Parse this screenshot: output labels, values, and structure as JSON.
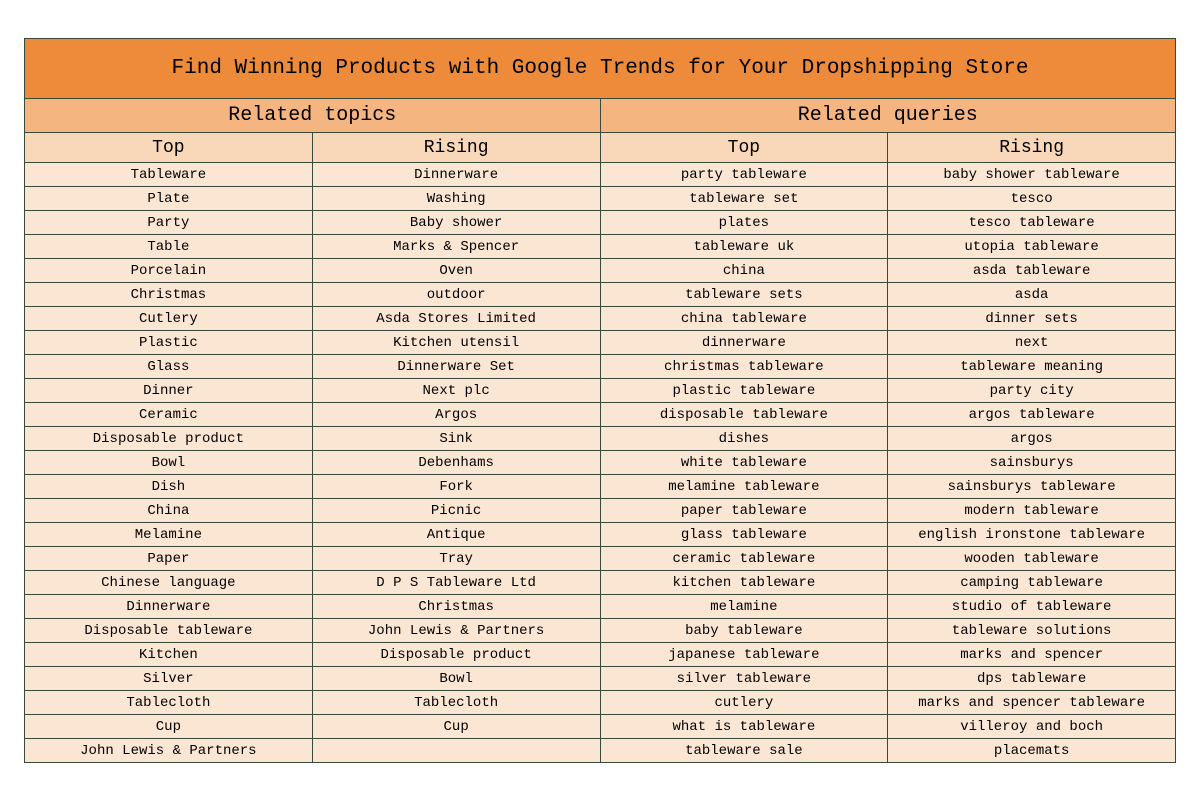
{
  "title": "Find Winning Products with Google Trends for Your Dropshipping Store",
  "sections": {
    "left": "Related topics",
    "right": "Related queries"
  },
  "subheaders": {
    "c0": "Top",
    "c1": "Rising",
    "c2": "Top",
    "c3": "Rising"
  },
  "rows": [
    {
      "c0": "Tableware",
      "c1": "Dinnerware",
      "c2": "party tableware",
      "c3": "baby shower tableware"
    },
    {
      "c0": "Plate",
      "c1": "Washing",
      "c2": "tableware set",
      "c3": "tesco"
    },
    {
      "c0": "Party",
      "c1": "Baby shower",
      "c2": "plates",
      "c3": "tesco tableware"
    },
    {
      "c0": "Table",
      "c1": "Marks & Spencer",
      "c2": "tableware uk",
      "c3": "utopia tableware"
    },
    {
      "c0": "Porcelain",
      "c1": "Oven",
      "c2": "china",
      "c3": "asda tableware"
    },
    {
      "c0": "Christmas",
      "c1": "outdoor",
      "c2": "tableware sets",
      "c3": "asda"
    },
    {
      "c0": "Cutlery",
      "c1": "Asda Stores Limited",
      "c2": "china tableware",
      "c3": "dinner sets"
    },
    {
      "c0": "Plastic",
      "c1": "Kitchen utensil",
      "c2": "dinnerware",
      "c3": "next"
    },
    {
      "c0": "Glass",
      "c1": "Dinnerware Set",
      "c2": "christmas tableware",
      "c3": "tableware meaning"
    },
    {
      "c0": "Dinner",
      "c1": "Next plc",
      "c2": "plastic tableware",
      "c3": "party city"
    },
    {
      "c0": "Ceramic",
      "c1": "Argos",
      "c2": "disposable tableware",
      "c3": "argos tableware"
    },
    {
      "c0": "Disposable product",
      "c1": "Sink",
      "c2": "dishes",
      "c3": "argos"
    },
    {
      "c0": "Bowl",
      "c1": "Debenhams",
      "c2": "white tableware",
      "c3": "sainsburys"
    },
    {
      "c0": "Dish",
      "c1": "Fork",
      "c2": "melamine tableware",
      "c3": "sainsburys tableware"
    },
    {
      "c0": "China",
      "c1": "Picnic",
      "c2": "paper tableware",
      "c3": "modern tableware"
    },
    {
      "c0": "Melamine",
      "c1": "Antique",
      "c2": "glass tableware",
      "c3": "english ironstone tableware"
    },
    {
      "c0": "Paper",
      "c1": "Tray",
      "c2": "ceramic tableware",
      "c3": "wooden tableware"
    },
    {
      "c0": "Chinese language",
      "c1": "D P S Tableware Ltd",
      "c2": "kitchen tableware",
      "c3": "camping tableware"
    },
    {
      "c0": "Dinnerware",
      "c1": "Christmas",
      "c2": "melamine",
      "c3": "studio of tableware"
    },
    {
      "c0": "Disposable tableware",
      "c1": "John Lewis & Partners",
      "c2": "baby tableware",
      "c3": "tableware solutions"
    },
    {
      "c0": "Kitchen",
      "c1": "Disposable product",
      "c2": "japanese tableware",
      "c3": "marks and spencer"
    },
    {
      "c0": "Silver",
      "c1": "Bowl",
      "c2": "silver tableware",
      "c3": "dps tableware"
    },
    {
      "c0": "Tablecloth",
      "c1": "Tablecloth",
      "c2": "cutlery",
      "c3": "marks and spencer tableware"
    },
    {
      "c0": "Cup",
      "c1": "Cup",
      "c2": "what is tableware",
      "c3": "villeroy and boch"
    },
    {
      "c0": "John Lewis & Partners",
      "c1": "",
      "c2": "tableware sale",
      "c3": "placemats"
    }
  ],
  "styling": {
    "colors": {
      "title_bg": "#ed8b3a",
      "section_bg": "#f5b580",
      "subheader_bg": "#f9d7b9",
      "data_bg": "#fbe6d4",
      "border": "#3a4a3a",
      "text": "#000000",
      "page_bg": "#ffffff"
    },
    "font_family": "Courier New, monospace",
    "title_fontsize": 21,
    "section_fontsize": 20,
    "subheader_fontsize": 18,
    "data_fontsize": 14
  }
}
